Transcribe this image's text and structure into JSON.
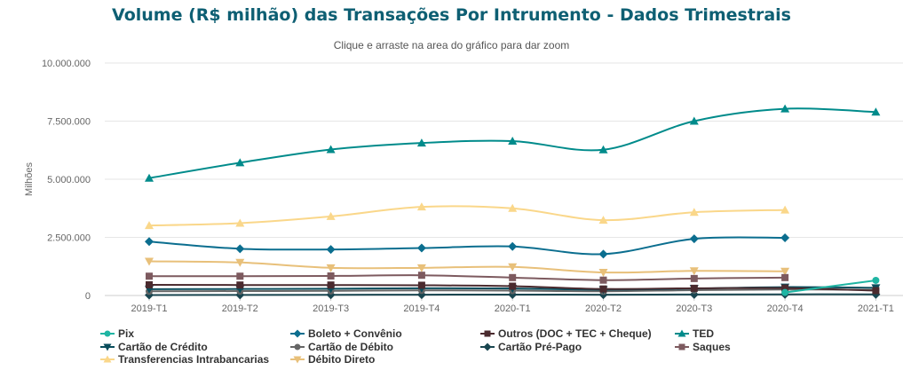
{
  "header": {
    "title": "Volume (R$ milhão) das Transações Por Intrumento - Dados Trimestrais",
    "subtitle": "Clique e arraste na area do gráfico para dar zoom"
  },
  "chart_data": {
    "type": "line",
    "title": "Volume (R$ milhão) das Transações Por Intrumento - Dados Trimestrais",
    "subtitle": "Clique e arraste na area do gráfico para dar zoom",
    "ylabel": "Milhões",
    "xlabel": "",
    "ylim": [
      0,
      10000000
    ],
    "y_ticks": [
      0,
      2500000,
      5000000,
      7500000,
      10000000
    ],
    "y_tick_labels": [
      "0",
      "2.500.000",
      "5.000.000",
      "7.500.000",
      "10.000.000"
    ],
    "grid": true,
    "legend_position": "bottom",
    "categories": [
      "2019-T1",
      "2019-T2",
      "2019-T3",
      "2019-T4",
      "2020-T1",
      "2020-T2",
      "2020-T3",
      "2020-T4",
      "2021-T1"
    ],
    "series": [
      {
        "name": "Pix",
        "color": "#1fb5a3",
        "marker": "circle",
        "values": [
          null,
          null,
          null,
          null,
          null,
          null,
          null,
          130000,
          650000
        ]
      },
      {
        "name": "Boleto + Convênio",
        "color": "#0b6e8f",
        "marker": "diamond",
        "values": [
          2320000,
          2010000,
          1980000,
          2040000,
          2110000,
          1780000,
          2440000,
          2480000,
          null
        ]
      },
      {
        "name": "Outros (DOC + TEC + Cheque)",
        "color": "#4a2a2e",
        "marker": "square",
        "values": [
          460000,
          450000,
          450000,
          440000,
          400000,
          280000,
          310000,
          320000,
          210000
        ]
      },
      {
        "name": "TED",
        "color": "#008b8b",
        "marker": "triangle-up",
        "values": [
          5050000,
          5710000,
          6280000,
          6560000,
          6640000,
          6270000,
          7500000,
          8030000,
          7890000
        ]
      },
      {
        "name": "Cartão de Crédito",
        "color": "#0a4d5c",
        "marker": "triangle-down",
        "values": [
          270000,
          280000,
          290000,
          310000,
          300000,
          250000,
          300000,
          360000,
          330000
        ]
      },
      {
        "name": "Cartão de Débito",
        "color": "#666666",
        "marker": "circle",
        "values": [
          180000,
          190000,
          200000,
          220000,
          210000,
          180000,
          230000,
          260000,
          240000
        ]
      },
      {
        "name": "Cartão Pré-Pago",
        "color": "#1a4650",
        "marker": "diamond",
        "values": [
          20000,
          25000,
          30000,
          35000,
          40000,
          35000,
          45000,
          50000,
          50000
        ]
      },
      {
        "name": "Saques",
        "color": "#7d5a5f",
        "marker": "square",
        "values": [
          830000,
          830000,
          840000,
          870000,
          770000,
          660000,
          730000,
          770000,
          null
        ]
      },
      {
        "name": "Transferencias Intrabancarias",
        "color": "#fad78a",
        "marker": "triangle-up",
        "values": [
          3010000,
          3110000,
          3400000,
          3810000,
          3750000,
          3240000,
          3580000,
          3680000,
          null
        ]
      },
      {
        "name": "Débito Direto",
        "color": "#e8c07a",
        "marker": "triangle-down",
        "values": [
          1470000,
          1420000,
          1190000,
          1190000,
          1230000,
          990000,
          1060000,
          1040000,
          null
        ]
      }
    ]
  }
}
